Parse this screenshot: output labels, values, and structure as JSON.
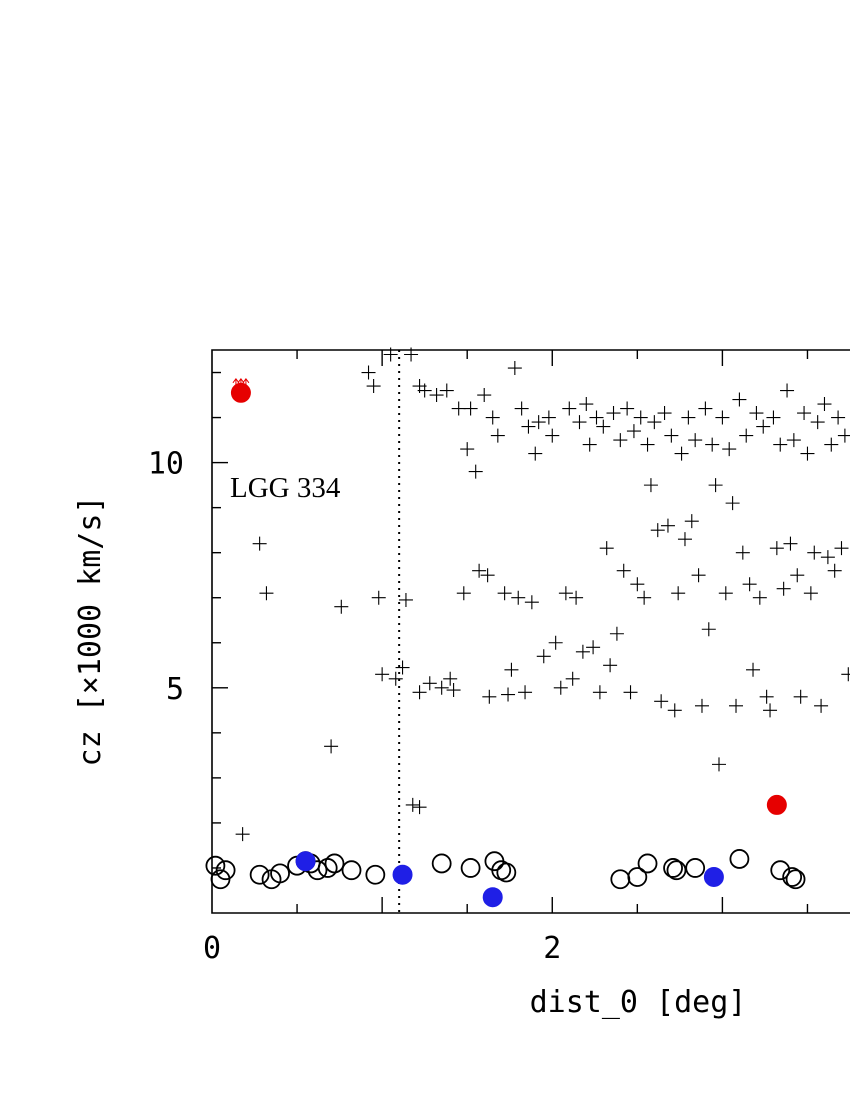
{
  "chart_data": {
    "type": "scatter",
    "xlabel": "dist_0 [deg]",
    "ylabel": "cz [×1000 km/s]",
    "xlim": [
      0,
      3.75
    ],
    "ylim": [
      0,
      12.5
    ],
    "x_ticks": [
      0,
      2
    ],
    "y_ticks": [
      5,
      10
    ],
    "annotation": "LGG 334",
    "reference_line": {
      "x": 1.1,
      "style": "dotted"
    },
    "grid": false,
    "series": [
      {
        "marker": "open-circle",
        "color": "#000000",
        "points": [
          [
            0.02,
            1.05
          ],
          [
            0.05,
            0.75
          ],
          [
            0.08,
            0.95
          ],
          [
            0.28,
            0.85
          ],
          [
            0.35,
            0.75
          ],
          [
            0.4,
            0.88
          ],
          [
            0.5,
            1.05
          ],
          [
            0.55,
            1.15
          ],
          [
            0.58,
            1.1
          ],
          [
            0.62,
            0.95
          ],
          [
            0.68,
            1.0
          ],
          [
            0.72,
            1.1
          ],
          [
            0.82,
            0.95
          ],
          [
            0.96,
            0.85
          ],
          [
            1.35,
            1.1
          ],
          [
            1.52,
            1.0
          ],
          [
            1.66,
            1.15
          ],
          [
            1.7,
            0.95
          ],
          [
            1.73,
            0.9
          ],
          [
            2.4,
            0.75
          ],
          [
            2.5,
            0.8
          ],
          [
            2.56,
            1.1
          ],
          [
            2.71,
            1.0
          ],
          [
            2.73,
            0.95
          ],
          [
            2.84,
            1.0
          ],
          [
            3.1,
            1.2
          ],
          [
            3.34,
            0.95
          ],
          [
            3.41,
            0.8
          ],
          [
            3.43,
            0.75
          ]
        ]
      },
      {
        "marker": "filled-circle",
        "color": "#1f1fe6",
        "points": [
          [
            0.55,
            1.15
          ],
          [
            1.12,
            0.85
          ],
          [
            1.65,
            0.35
          ],
          [
            2.95,
            0.8
          ]
        ]
      },
      {
        "marker": "filled-circle",
        "color": "#e60000",
        "points": [
          [
            0.17,
            11.55
          ],
          [
            3.32,
            2.4
          ]
        ],
        "lower_limit_arrows": [
          [
            0.17,
            11.55
          ]
        ]
      },
      {
        "marker": "plus",
        "color": "#000000",
        "points": [
          [
            0.18,
            1.75
          ],
          [
            0.28,
            8.2
          ],
          [
            0.32,
            7.1
          ],
          [
            0.7,
            3.7
          ],
          [
            0.76,
            6.8
          ],
          [
            0.92,
            12.0
          ],
          [
            0.95,
            11.7
          ],
          [
            0.98,
            7.0
          ],
          [
            1.0,
            5.3
          ],
          [
            1.05,
            12.4
          ],
          [
            1.08,
            5.2
          ],
          [
            1.12,
            5.45
          ],
          [
            1.14,
            6.95
          ],
          [
            1.17,
            12.4
          ],
          [
            1.18,
            2.4
          ],
          [
            1.22,
            2.35
          ],
          [
            1.22,
            11.7
          ],
          [
            1.22,
            4.9
          ],
          [
            1.25,
            11.6
          ],
          [
            1.28,
            5.1
          ],
          [
            1.32,
            11.5
          ],
          [
            1.35,
            5.0
          ],
          [
            1.38,
            11.6
          ],
          [
            1.4,
            5.2
          ],
          [
            1.42,
            4.95
          ],
          [
            1.45,
            11.2
          ],
          [
            1.48,
            7.1
          ],
          [
            1.5,
            10.3
          ],
          [
            1.52,
            11.2
          ],
          [
            1.55,
            9.8
          ],
          [
            1.57,
            7.6
          ],
          [
            1.6,
            11.5
          ],
          [
            1.62,
            7.5
          ],
          [
            1.63,
            4.8
          ],
          [
            1.65,
            11.0
          ],
          [
            1.68,
            10.6
          ],
          [
            1.72,
            7.1
          ],
          [
            1.74,
            4.85
          ],
          [
            1.76,
            5.4
          ],
          [
            1.78,
            12.1
          ],
          [
            1.8,
            7.0
          ],
          [
            1.82,
            11.2
          ],
          [
            1.84,
            4.9
          ],
          [
            1.86,
            10.8
          ],
          [
            1.88,
            6.9
          ],
          [
            1.9,
            10.2
          ],
          [
            1.92,
            10.9
          ],
          [
            1.95,
            5.7
          ],
          [
            1.98,
            11.0
          ],
          [
            2.0,
            10.6
          ],
          [
            2.02,
            6.0
          ],
          [
            2.05,
            5.0
          ],
          [
            2.08,
            7.1
          ],
          [
            2.1,
            11.2
          ],
          [
            2.12,
            5.2
          ],
          [
            2.14,
            7.0
          ],
          [
            2.16,
            10.9
          ],
          [
            2.18,
            5.8
          ],
          [
            2.2,
            11.3
          ],
          [
            2.22,
            10.4
          ],
          [
            2.24,
            5.9
          ],
          [
            2.26,
            11.0
          ],
          [
            2.28,
            4.9
          ],
          [
            2.3,
            10.8
          ],
          [
            2.32,
            8.1
          ],
          [
            2.34,
            5.5
          ],
          [
            2.36,
            11.1
          ],
          [
            2.38,
            6.2
          ],
          [
            2.4,
            10.5
          ],
          [
            2.42,
            7.6
          ],
          [
            2.44,
            11.2
          ],
          [
            2.46,
            4.9
          ],
          [
            2.48,
            10.7
          ],
          [
            2.5,
            7.3
          ],
          [
            2.52,
            11.0
          ],
          [
            2.54,
            7.0
          ],
          [
            2.56,
            10.4
          ],
          [
            2.58,
            9.5
          ],
          [
            2.6,
            10.9
          ],
          [
            2.62,
            8.5
          ],
          [
            2.64,
            4.7
          ],
          [
            2.66,
            11.1
          ],
          [
            2.68,
            8.6
          ],
          [
            2.7,
            10.6
          ],
          [
            2.72,
            4.5
          ],
          [
            2.74,
            7.1
          ],
          [
            2.76,
            10.2
          ],
          [
            2.78,
            8.3
          ],
          [
            2.8,
            11.0
          ],
          [
            2.82,
            8.7
          ],
          [
            2.84,
            10.5
          ],
          [
            2.86,
            7.5
          ],
          [
            2.88,
            4.6
          ],
          [
            2.9,
            11.2
          ],
          [
            2.92,
            6.3
          ],
          [
            2.94,
            10.4
          ],
          [
            2.96,
            9.5
          ],
          [
            2.98,
            3.3
          ],
          [
            3.0,
            11.0
          ],
          [
            3.02,
            7.1
          ],
          [
            3.04,
            10.3
          ],
          [
            3.06,
            9.1
          ],
          [
            3.08,
            4.6
          ],
          [
            3.1,
            11.4
          ],
          [
            3.12,
            8.0
          ],
          [
            3.14,
            10.6
          ],
          [
            3.16,
            7.3
          ],
          [
            3.18,
            5.4
          ],
          [
            3.2,
            11.1
          ],
          [
            3.22,
            7.0
          ],
          [
            3.24,
            10.8
          ],
          [
            3.26,
            4.8
          ],
          [
            3.28,
            4.5
          ],
          [
            3.3,
            11.0
          ],
          [
            3.32,
            8.1
          ],
          [
            3.34,
            10.4
          ],
          [
            3.36,
            7.2
          ],
          [
            3.38,
            11.6
          ],
          [
            3.4,
            8.2
          ],
          [
            3.42,
            10.5
          ],
          [
            3.44,
            7.5
          ],
          [
            3.46,
            4.8
          ],
          [
            3.48,
            11.1
          ],
          [
            3.5,
            10.2
          ],
          [
            3.52,
            7.1
          ],
          [
            3.54,
            8.0
          ],
          [
            3.56,
            10.9
          ],
          [
            3.58,
            4.6
          ],
          [
            3.6,
            11.3
          ],
          [
            3.62,
            7.9
          ],
          [
            3.64,
            10.4
          ],
          [
            3.66,
            7.6
          ],
          [
            3.68,
            11.0
          ],
          [
            3.7,
            8.1
          ],
          [
            3.72,
            10.6
          ],
          [
            3.74,
            5.3
          ]
        ]
      }
    ]
  }
}
